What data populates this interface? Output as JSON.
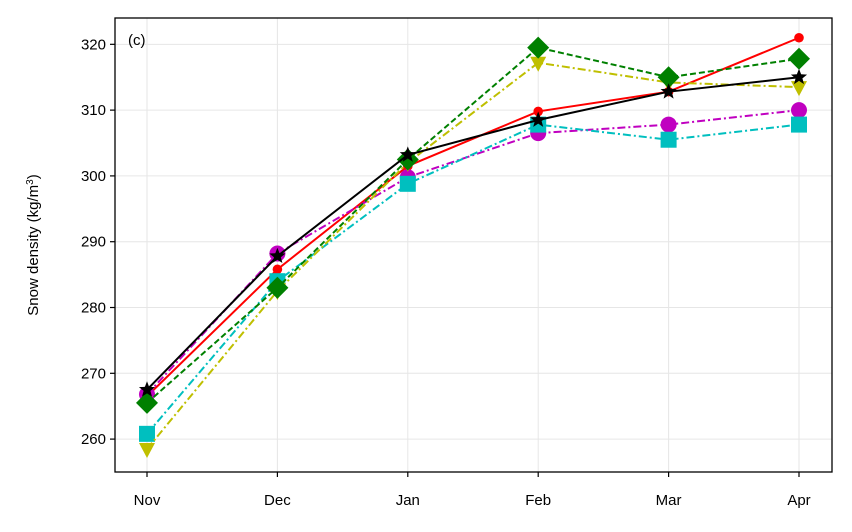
{
  "chart_data": {
    "type": "line",
    "panel_label": "(c)",
    "ylabel_base": "Snow density (kg/m",
    "ylabel_sup": "3",
    "ylabel_close": ")",
    "categories": [
      "Nov",
      "Dec",
      "Jan",
      "Feb",
      "Mar",
      "Apr"
    ],
    "ylim": [
      255,
      324
    ],
    "yticks": [
      260,
      270,
      280,
      290,
      300,
      310,
      320
    ],
    "grid": true,
    "series": [
      {
        "name": "red-circle",
        "color": "#ff0000",
        "dash": "solid",
        "marker": "circle-small",
        "values": [
          266.5,
          285.8,
          301.5,
          309.8,
          312.8,
          321.0
        ]
      },
      {
        "name": "magenta-circle",
        "color": "#c000c0",
        "dash": "dashdot",
        "marker": "circle",
        "values": [
          266.8,
          288.2,
          299.8,
          306.5,
          307.8,
          310.0
        ]
      },
      {
        "name": "cyan-square",
        "color": "#00bfbf",
        "dash": "dashdot",
        "marker": "square",
        "values": [
          260.8,
          284.0,
          298.8,
          307.8,
          305.5,
          307.8
        ]
      },
      {
        "name": "olive-triangle",
        "color": "#bfbf00",
        "dash": "dashdot",
        "marker": "triangle-down",
        "values": [
          258.5,
          282.5,
          302.0,
          317.2,
          314.2,
          313.5
        ]
      },
      {
        "name": "green-diamond",
        "color": "#008000",
        "dash": "dashed",
        "marker": "diamond",
        "values": [
          265.5,
          283.0,
          302.5,
          319.5,
          315.0,
          317.8
        ]
      },
      {
        "name": "black-star",
        "color": "#000000",
        "dash": "solid",
        "marker": "star",
        "values": [
          267.5,
          287.8,
          303.2,
          308.5,
          312.8,
          315.0
        ]
      }
    ]
  }
}
